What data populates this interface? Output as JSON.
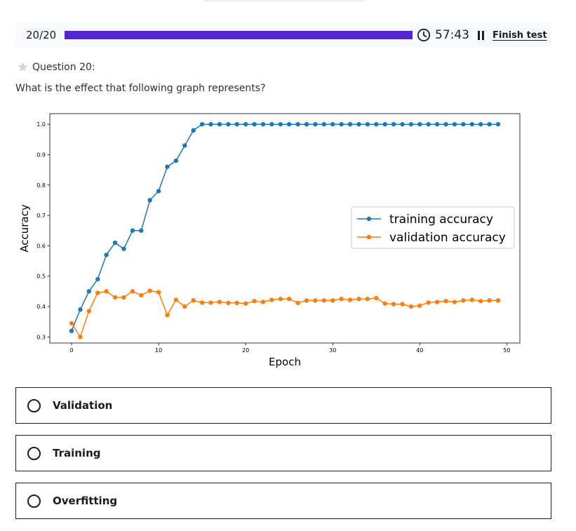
{
  "header": {
    "counter": "20/20",
    "progress_fraction": 1.0,
    "timer": "57:43",
    "finish_label": "Finish test",
    "accent_color": "#5624d0",
    "icons": [
      "clock-icon",
      "pause-icon"
    ]
  },
  "question": {
    "label": "Question 20:",
    "prompt": "What is the effect that following graph represents?",
    "icon": "star-icon"
  },
  "options": [
    {
      "label": "Validation"
    },
    {
      "label": "Training"
    },
    {
      "label": "Overfitting"
    }
  ],
  "chart_data": {
    "type": "line",
    "xlabel": "Epoch",
    "ylabel": "Accuracy",
    "xlim": [
      -2.5,
      51.5
    ],
    "ylim": [
      0.28,
      1.035
    ],
    "xticks": [
      0,
      10,
      20,
      30,
      40,
      50
    ],
    "yticks": [
      0.3,
      0.4,
      0.5,
      0.6,
      0.7,
      0.8,
      0.9,
      1.0
    ],
    "xtick_labels": [
      "0",
      "10",
      "20",
      "30",
      "40",
      "50"
    ],
    "ytick_labels": [
      "0.3",
      "0.4",
      "0.5",
      "0.6",
      "0.7",
      "0.8",
      "0.9",
      "1.0"
    ],
    "legend_position": "center-right",
    "grid": false,
    "x": [
      0,
      1,
      2,
      3,
      4,
      5,
      6,
      7,
      8,
      9,
      10,
      11,
      12,
      13,
      14,
      15,
      16,
      17,
      18,
      19,
      20,
      21,
      22,
      23,
      24,
      25,
      26,
      27,
      28,
      29,
      30,
      31,
      32,
      33,
      34,
      35,
      36,
      37,
      38,
      39,
      40,
      41,
      42,
      43,
      44,
      45,
      46,
      47,
      48,
      49
    ],
    "series": [
      {
        "name": "training accuracy",
        "color": "#1f77b4",
        "values": [
          0.32,
          0.39,
          0.45,
          0.49,
          0.57,
          0.61,
          0.59,
          0.65,
          0.65,
          0.75,
          0.78,
          0.86,
          0.88,
          0.93,
          0.98,
          1.0,
          1.0,
          1.0,
          1.0,
          1.0,
          1.0,
          1.0,
          1.0,
          1.0,
          1.0,
          1.0,
          1.0,
          1.0,
          1.0,
          1.0,
          1.0,
          1.0,
          1.0,
          1.0,
          1.0,
          1.0,
          1.0,
          1.0,
          1.0,
          1.0,
          1.0,
          1.0,
          1.0,
          1.0,
          1.0,
          1.0,
          1.0,
          1.0,
          1.0,
          1.0
        ]
      },
      {
        "name": "validation accuracy",
        "color": "#ff7f0e",
        "values": [
          0.345,
          0.3,
          0.385,
          0.445,
          0.45,
          0.43,
          0.43,
          0.45,
          0.437,
          0.452,
          0.447,
          0.372,
          0.422,
          0.4,
          0.42,
          0.413,
          0.413,
          0.415,
          0.412,
          0.412,
          0.41,
          0.418,
          0.415,
          0.422,
          0.425,
          0.425,
          0.412,
          0.42,
          0.42,
          0.42,
          0.42,
          0.425,
          0.422,
          0.425,
          0.425,
          0.428,
          0.41,
          0.408,
          0.408,
          0.4,
          0.403,
          0.413,
          0.415,
          0.418,
          0.415,
          0.42,
          0.422,
          0.418,
          0.42,
          0.42
        ]
      }
    ]
  }
}
